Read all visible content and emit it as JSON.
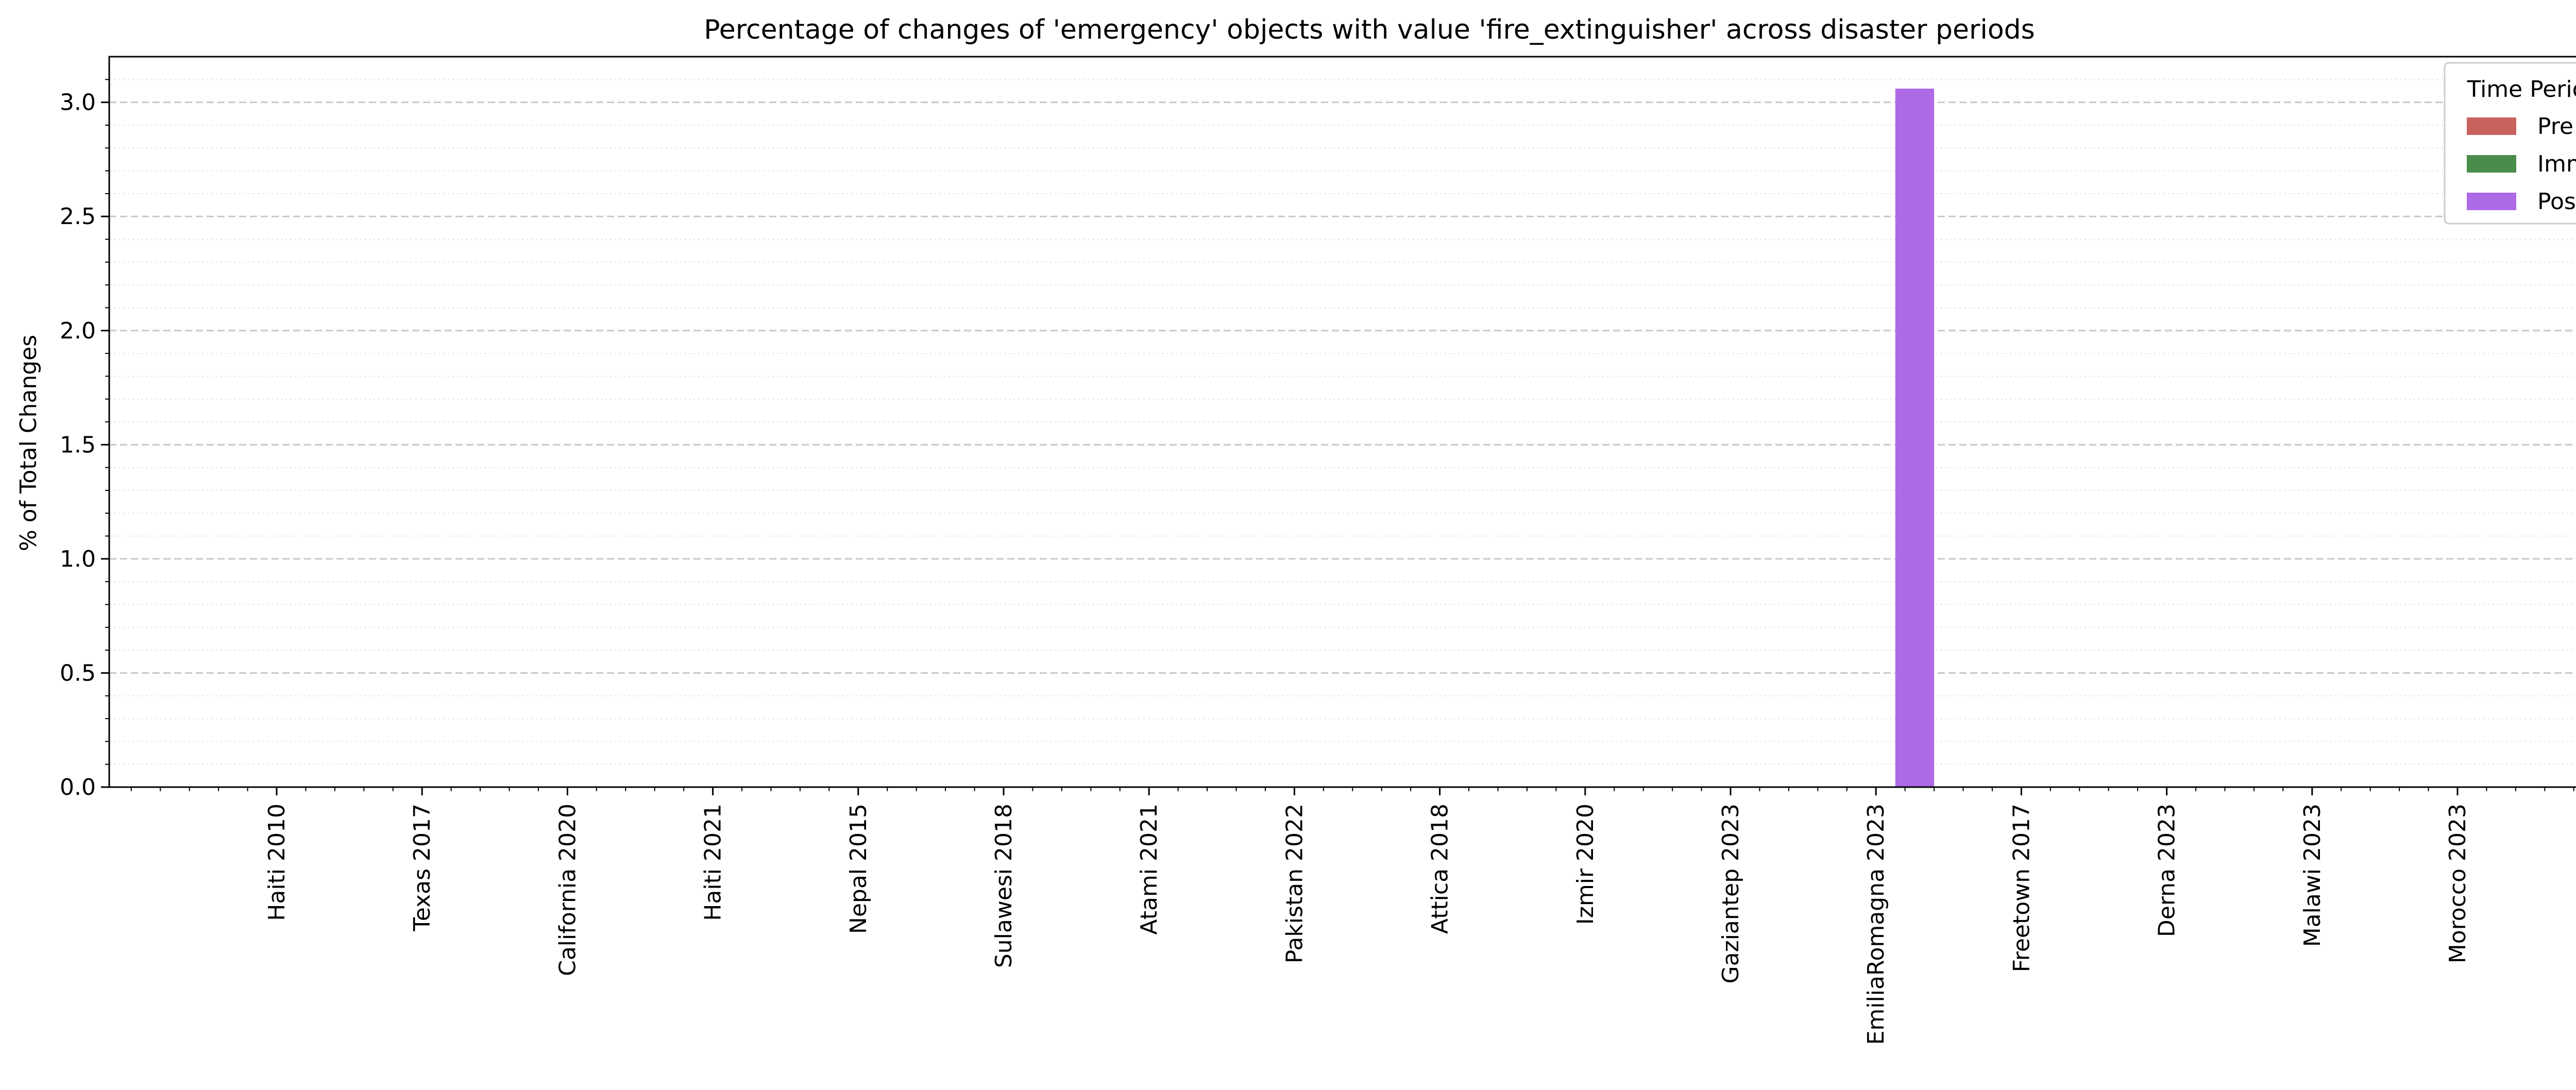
{
  "chart_data": {
    "type": "bar",
    "title": "Percentage of changes of 'emergency' objects with value 'fire_extinguisher' across disaster periods",
    "xlabel": "",
    "ylabel": "% of Total Changes",
    "categories": [
      "Haiti 2010",
      "Texas 2017",
      "California 2020",
      "Haiti 2021",
      "Nepal 2015",
      "Sulawesi 2018",
      "Atami 2021",
      "Pakistan 2022",
      "Attica 2018",
      "Izmir 2020",
      "Gaziantep 2023",
      "EmiliaRomagna 2023",
      "Freetown 2017",
      "Derna 2023",
      "Malawi 2023",
      "Morocco 2023"
    ],
    "series": [
      {
        "name": "Pre",
        "color": "#c9625d",
        "values": [
          0,
          0,
          0,
          0,
          0,
          0,
          0,
          0,
          0,
          0,
          0,
          0,
          0,
          0,
          0,
          0
        ]
      },
      {
        "name": "Imm",
        "color": "#4a8c4a",
        "values": [
          0,
          0,
          0,
          0,
          0,
          0,
          0,
          0,
          0,
          0,
          0,
          0,
          0,
          0,
          0,
          0
        ]
      },
      {
        "name": "Post",
        "color": "#ad69e6",
        "values": [
          0,
          0,
          0,
          0,
          0,
          0,
          0,
          0,
          0,
          0,
          0,
          3.06,
          0,
          0,
          0,
          0
        ]
      }
    ],
    "ylim": [
      0,
      3.2
    ],
    "yticks": [
      "0.0",
      "0.5",
      "1.0",
      "1.5",
      "2.0",
      "2.5",
      "3.0"
    ],
    "legend": {
      "title": "Time Period",
      "position": "top-right"
    },
    "grid": "horizontal major dashed, minor dotted"
  }
}
